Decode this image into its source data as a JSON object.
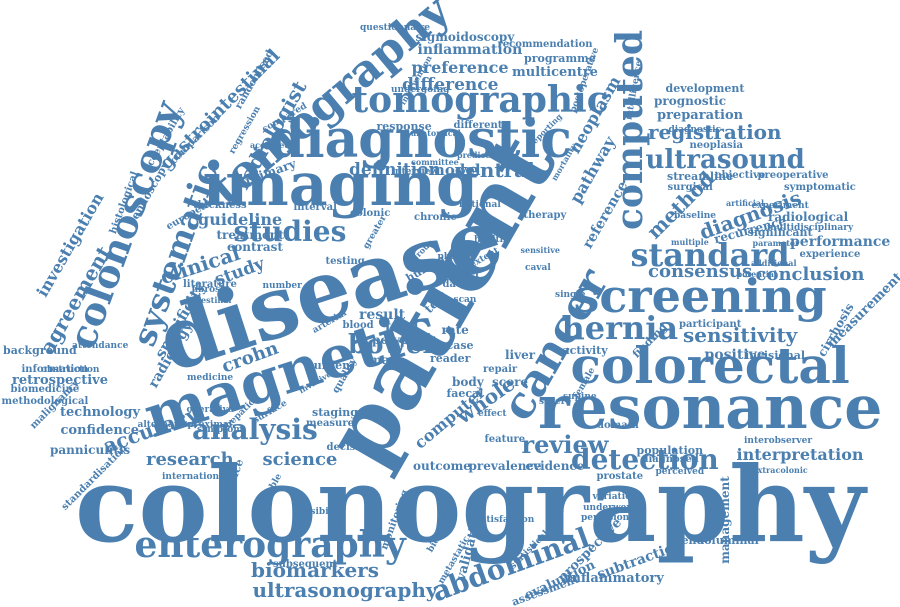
{
  "color": "#4a7fb0",
  "words": [
    "colonography",
    "patient",
    "disease",
    "magnetic",
    "resonance",
    "colorectal",
    "imaging",
    "diagnostic",
    "screening",
    "cancer",
    "tomography",
    "colonoscopy",
    "tomographic",
    "computed",
    "enterography",
    "abdominal",
    "systematic",
    "hernia",
    "standard",
    "ultrasound",
    "analysis",
    "studies",
    "detection",
    "review",
    "ultrasonography",
    "biomarkers",
    "bowel",
    "research",
    "accuracy",
    "agreement",
    "registration",
    "sensitivity",
    "diagnosis",
    "method",
    "clinical",
    "science",
    "crohn",
    "definition",
    "ventral",
    "model",
    "difference",
    "preference",
    "inflammation",
    "sigmoidoscopy",
    "gastrointestinal",
    "radiologist",
    "consensus",
    "conclusion",
    "performance",
    "interpretation",
    "positive",
    "radiology",
    "specificity",
    "investigation",
    "retrospective",
    "technology",
    "confidence",
    "background",
    "information",
    "biomedicine",
    "methodological",
    "literature",
    "guideline",
    "treatment",
    "contrast",
    "study",
    "result",
    "trial",
    "polyp",
    "blood",
    "image",
    "test",
    "scan",
    "whole",
    "computer",
    "body",
    "faecal",
    "repair",
    "activity",
    "liver",
    "reader",
    "rate",
    "case",
    "data",
    "outcome",
    "prevalence",
    "evidence",
    "population",
    "prognostic",
    "preparation",
    "development",
    "neoplasia",
    "streamline",
    "surgical",
    "objective",
    "preoperative",
    "symptomatic",
    "recurrence",
    "radiological",
    "significant",
    "experience",
    "measurement",
    "cirrhosis",
    "incisional",
    "finding",
    "participant",
    "management",
    "endoluminal",
    "subtraction",
    "inflammatory",
    "evaluation",
    "assessment",
    "prospective",
    "satisfaction",
    "validation",
    "subsequent",
    "variation",
    "underwent",
    "perfusion",
    "neoplasm",
    "pathway",
    "reference",
    "multicentre",
    "programme",
    "recommendation",
    "response",
    "different",
    "primary",
    "interval",
    "colonic",
    "chronic",
    "greater",
    "burden",
    "testing",
    "number",
    "presence",
    "staging",
    "measure",
    "decision",
    "human",
    "quality",
    "panniculitis",
    "malignancy",
    "obstruction",
    "attendance",
    "medicine",
    "operative",
    "surface",
    "hepatic",
    "histological",
    "endoscopy",
    "randomised",
    "european",
    "thickness",
    "acceptability",
    "comparison",
    "compared",
    "regression",
    "questionnaire",
    "intervention",
    "undergoing",
    "national",
    "therapy",
    "anatomical",
    "score",
    "effect",
    "severe",
    "feature",
    "domain",
    "prostate",
    "diagnosed",
    "perceived",
    "interobserver",
    "extracolonic",
    "additional",
    "potential",
    "baseline",
    "artificial",
    "multiple",
    "parameter",
    "experiment",
    "multidisciplinary",
    "intelligence",
    "postoperative",
    "reporting",
    "mortality",
    "extent",
    "health",
    "sensitive",
    "committee",
    "prediction",
    "lower",
    "phase",
    "group",
    "caval",
    "single",
    "female",
    "supine",
    "fibrosis",
    "arterial",
    "invasive",
    "monitoring",
    "biological",
    "statistical",
    "metastatic",
    "standardisation",
    "international",
    "feasibility",
    "variable",
    "symptom",
    "intestinal",
    "alternative",
    "proximal",
    "accepted",
    "diagnostic",
    "interview"
  ]
}
